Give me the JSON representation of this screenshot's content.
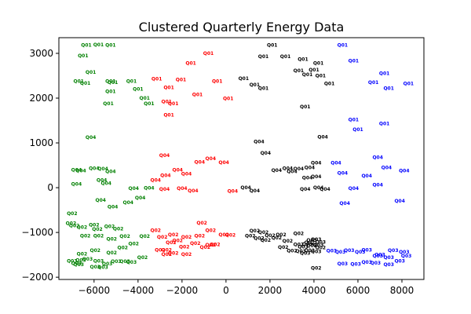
{
  "chart_data": {
    "type": "scatter",
    "title": "Clustered Quarterly Energy Data",
    "xlabel": "",
    "ylabel": "",
    "xlim": [
      -7600,
      9000
    ],
    "ylim": [
      -2050,
      3350
    ],
    "xticks": [
      -6000,
      -4000,
      -2000,
      0,
      2000,
      4000,
      6000,
      8000
    ],
    "yticks": [
      -2000,
      -1000,
      0,
      1000,
      2000,
      3000
    ],
    "grid": false,
    "legend": "none",
    "point_style": "text labels (no markers)",
    "clusters": [
      {
        "color": "#008000",
        "points": [
          [
            -6350,
            3180,
            "Q01"
          ],
          [
            -5800,
            3190,
            "Q01"
          ],
          [
            -5250,
            3180,
            "Q01"
          ],
          [
            -6500,
            2950,
            "Q01"
          ],
          [
            -6150,
            2580,
            "Q01"
          ],
          [
            -6700,
            2380,
            "Q01"
          ],
          [
            -6400,
            2330,
            "Q01"
          ],
          [
            -5250,
            2380,
            "Q01"
          ],
          [
            -5150,
            2350,
            "Q01"
          ],
          [
            -4300,
            2380,
            "Q01"
          ],
          [
            -4000,
            2200,
            "Q01"
          ],
          [
            -5250,
            2150,
            "Q01"
          ],
          [
            -3700,
            2000,
            "Q01"
          ],
          [
            -3500,
            1880,
            "Q01"
          ],
          [
            -5350,
            1880,
            "Q01"
          ],
          [
            -6150,
            1120,
            "Q04"
          ],
          [
            -6800,
            400,
            "Q04"
          ],
          [
            -6600,
            380,
            "Q04"
          ],
          [
            -6000,
            430,
            "Q04"
          ],
          [
            -5600,
            420,
            "Q04"
          ],
          [
            -5250,
            360,
            "Q04"
          ],
          [
            -5650,
            170,
            "Q04"
          ],
          [
            -5450,
            100,
            "Q04"
          ],
          [
            -6800,
            80,
            "Q04"
          ],
          [
            -4200,
            -20,
            "Q04"
          ],
          [
            -3500,
            -10,
            "Q04"
          ],
          [
            -5700,
            -280,
            "Q04"
          ],
          [
            -4450,
            -330,
            "Q04"
          ],
          [
            -3900,
            -230,
            "Q04"
          ],
          [
            -5150,
            -430,
            "Q04"
          ],
          [
            -7000,
            -580,
            "Q02"
          ],
          [
            -7050,
            -800,
            "Q02"
          ],
          [
            -6900,
            -850,
            "Q02"
          ],
          [
            -6550,
            -880,
            "Q02"
          ],
          [
            -6000,
            -830,
            "Q02"
          ],
          [
            -5850,
            -930,
            "Q02"
          ],
          [
            -5300,
            -870,
            "Q02"
          ],
          [
            -4900,
            -920,
            "Q02"
          ],
          [
            -6400,
            -1080,
            "Q02"
          ],
          [
            -5800,
            -1080,
            "Q02"
          ],
          [
            -5200,
            -1150,
            "Q02"
          ],
          [
            -4600,
            -1090,
            "Q02"
          ],
          [
            -3700,
            -1090,
            "Q02"
          ],
          [
            -4200,
            -1250,
            "Q02"
          ],
          [
            -4700,
            -1340,
            "Q02"
          ],
          [
            -6550,
            -1480,
            "Q02"
          ],
          [
            -5950,
            -1400,
            "Q02"
          ],
          [
            -5200,
            -1450,
            "Q02"
          ],
          [
            -3800,
            -1560,
            "Q02"
          ],
          [
            -7000,
            -1640,
            "Q03"
          ],
          [
            -6800,
            -1690,
            "Q03"
          ],
          [
            -6600,
            -1620,
            "Q03"
          ],
          [
            -6300,
            -1590,
            "Q03"
          ],
          [
            -5800,
            -1640,
            "Q03"
          ],
          [
            -5400,
            -1700,
            "Q03"
          ],
          [
            -5000,
            -1650,
            "Q03"
          ],
          [
            -4600,
            -1650,
            "Q03"
          ],
          [
            -4300,
            -1660,
            "Q03"
          ],
          [
            -5950,
            -1770,
            "Q03"
          ],
          [
            -5600,
            -1780,
            "Q03"
          ],
          [
            -6700,
            -1720,
            "Q03"
          ]
        ]
      },
      {
        "color": "#ff0000",
        "points": [
          [
            -800,
            3000,
            "Q01"
          ],
          [
            -1600,
            2780,
            "Q01"
          ],
          [
            -3150,
            2430,
            "Q01"
          ],
          [
            -2050,
            2410,
            "Q01"
          ],
          [
            -400,
            2380,
            "Q01"
          ],
          [
            -2600,
            2240,
            "Q01"
          ],
          [
            -1300,
            2080,
            "Q01"
          ],
          [
            -2700,
            1920,
            "Q01"
          ],
          [
            -2400,
            1880,
            "Q01"
          ],
          [
            100,
            1990,
            "Q01"
          ],
          [
            -2600,
            1620,
            "Q01"
          ],
          [
            -2800,
            720,
            "Q04"
          ],
          [
            -700,
            650,
            "Q04"
          ],
          [
            -1200,
            570,
            "Q04"
          ],
          [
            -100,
            560,
            "Q04"
          ],
          [
            -2200,
            400,
            "Q04"
          ],
          [
            -2750,
            270,
            "Q04"
          ],
          [
            -1800,
            310,
            "Q04"
          ],
          [
            -3200,
            170,
            "Q04"
          ],
          [
            -2000,
            -20,
            "Q04"
          ],
          [
            -2800,
            -30,
            "Q04"
          ],
          [
            -1500,
            -70,
            "Q04"
          ],
          [
            300,
            -80,
            "Q04"
          ],
          [
            -3200,
            -950,
            "Q02"
          ],
          [
            -1100,
            -790,
            "Q02"
          ],
          [
            -700,
            -950,
            "Q02"
          ],
          [
            -2400,
            -1050,
            "Q02"
          ],
          [
            -2900,
            -1100,
            "Q02"
          ],
          [
            -1800,
            -1100,
            "Q02"
          ],
          [
            -1200,
            -1080,
            "Q02"
          ],
          [
            -100,
            -1050,
            "Q02"
          ],
          [
            200,
            -1060,
            "Q02"
          ],
          [
            -2200,
            -1180,
            "Q02"
          ],
          [
            -2500,
            -1230,
            "Q02"
          ],
          [
            -1400,
            -1240,
            "Q02"
          ],
          [
            -700,
            -1280,
            "Q02"
          ],
          [
            -1900,
            -1320,
            "Q02"
          ],
          [
            -3000,
            -1390,
            "Q02"
          ],
          [
            -2700,
            -1390,
            "Q02"
          ],
          [
            -2400,
            -1460,
            "Q02"
          ],
          [
            -1800,
            -1490,
            "Q02"
          ],
          [
            -950,
            -1330,
            "Q02"
          ],
          [
            -2700,
            -1490,
            "Q02"
          ],
          [
            -500,
            -1270,
            "Q02"
          ]
        ]
      },
      {
        "color": "#000000",
        "points": [
          [
            2100,
            3180,
            "Q01"
          ],
          [
            1700,
            2930,
            "Q01"
          ],
          [
            2700,
            2930,
            "Q01"
          ],
          [
            3500,
            2870,
            "Q01"
          ],
          [
            4200,
            2780,
            "Q01"
          ],
          [
            3300,
            2610,
            "Q01"
          ],
          [
            4000,
            2630,
            "Q01"
          ],
          [
            3700,
            2530,
            "Q01"
          ],
          [
            4300,
            2500,
            "Q01"
          ],
          [
            800,
            2440,
            "Q01"
          ],
          [
            1300,
            2300,
            "Q01"
          ],
          [
            4700,
            2320,
            "Q01"
          ],
          [
            1700,
            2220,
            "Q01"
          ],
          [
            3600,
            1810,
            "Q01"
          ],
          [
            4400,
            1130,
            "Q04"
          ],
          [
            1500,
            1030,
            "Q04"
          ],
          [
            1800,
            770,
            "Q04"
          ],
          [
            2300,
            390,
            "Q04"
          ],
          [
            2800,
            430,
            "Q04"
          ],
          [
            3300,
            420,
            "Q04"
          ],
          [
            3800,
            450,
            "Q04"
          ],
          [
            4100,
            550,
            "Q04"
          ],
          [
            3700,
            220,
            "Q04"
          ],
          [
            3000,
            360,
            "Q04"
          ],
          [
            4100,
            250,
            "Q04"
          ],
          [
            900,
            0,
            "Q04"
          ],
          [
            3600,
            -30,
            "Q04"
          ],
          [
            4200,
            0,
            "Q04"
          ],
          [
            1300,
            -70,
            "Q04"
          ],
          [
            4500,
            -30,
            "Q04"
          ],
          [
            1300,
            -960,
            "Q02"
          ],
          [
            1700,
            -1000,
            "Q02"
          ],
          [
            1100,
            -1080,
            "Q02"
          ],
          [
            1500,
            -1130,
            "Q02"
          ],
          [
            2000,
            -1070,
            "Q02"
          ],
          [
            2500,
            -1050,
            "Q02"
          ],
          [
            3300,
            -1020,
            "Q02"
          ],
          [
            1800,
            -1170,
            "Q02"
          ],
          [
            2300,
            -1120,
            "Q02"
          ],
          [
            2800,
            -1190,
            "Q02"
          ],
          [
            2600,
            -1330,
            "Q02"
          ],
          [
            3300,
            -1270,
            "Q02"
          ],
          [
            3800,
            -1230,
            "Q02"
          ],
          [
            4300,
            -1340,
            "Q02"
          ],
          [
            3000,
            -1410,
            "Q02"
          ],
          [
            4100,
            -1800,
            "Q02"
          ],
          [
            3900,
            -1170,
            "Q03"
          ],
          [
            4100,
            -1160,
            "Q03"
          ],
          [
            4300,
            -1220,
            "Q03"
          ],
          [
            3500,
            -1320,
            "Q03"
          ],
          [
            3700,
            -1260,
            "Q03"
          ],
          [
            3900,
            -1300,
            "Q03"
          ],
          [
            4200,
            -1280,
            "Q03"
          ],
          [
            3800,
            -1400,
            "Q03"
          ],
          [
            4100,
            -1430,
            "Q03"
          ],
          [
            3400,
            -1420,
            "Q03"
          ],
          [
            3600,
            -1460,
            "Q03"
          ]
        ]
      },
      {
        "color": "#0000ff",
        "points": [
          [
            5300,
            3180,
            "Q01"
          ],
          [
            5800,
            2830,
            "Q01"
          ],
          [
            7200,
            2550,
            "Q01"
          ],
          [
            6700,
            2350,
            "Q01"
          ],
          [
            7400,
            2220,
            "Q01"
          ],
          [
            8300,
            2320,
            "Q01"
          ],
          [
            5800,
            1520,
            "Q01"
          ],
          [
            7200,
            1430,
            "Q01"
          ],
          [
            6000,
            1300,
            "Q01"
          ],
          [
            6900,
            680,
            "Q04"
          ],
          [
            5000,
            550,
            "Q04"
          ],
          [
            7300,
            450,
            "Q04"
          ],
          [
            8100,
            380,
            "Q04"
          ],
          [
            5300,
            330,
            "Q04"
          ],
          [
            6400,
            260,
            "Q04"
          ],
          [
            6900,
            60,
            "Q04"
          ],
          [
            5800,
            -20,
            "Q04"
          ],
          [
            7900,
            -300,
            "Q04"
          ],
          [
            5400,
            -350,
            "Q04"
          ],
          [
            4800,
            -1410,
            "Q03"
          ],
          [
            5200,
            -1440,
            "Q03"
          ],
          [
            5600,
            -1400,
            "Q03"
          ],
          [
            6100,
            -1440,
            "Q03"
          ],
          [
            6400,
            -1390,
            "Q03"
          ],
          [
            7000,
            -1500,
            "Q03"
          ],
          [
            7600,
            -1400,
            "Q03"
          ],
          [
            8100,
            -1440,
            "Q03"
          ],
          [
            6900,
            -1520,
            "Q03"
          ],
          [
            8200,
            -1520,
            "Q03"
          ],
          [
            7400,
            -1560,
            "Q03"
          ],
          [
            5300,
            -1700,
            "Q03"
          ],
          [
            5900,
            -1710,
            "Q03"
          ],
          [
            6400,
            -1660,
            "Q03"
          ],
          [
            6800,
            -1680,
            "Q03"
          ],
          [
            7400,
            -1720,
            "Q03"
          ],
          [
            7900,
            -1640,
            "Q03"
          ]
        ]
      }
    ]
  }
}
